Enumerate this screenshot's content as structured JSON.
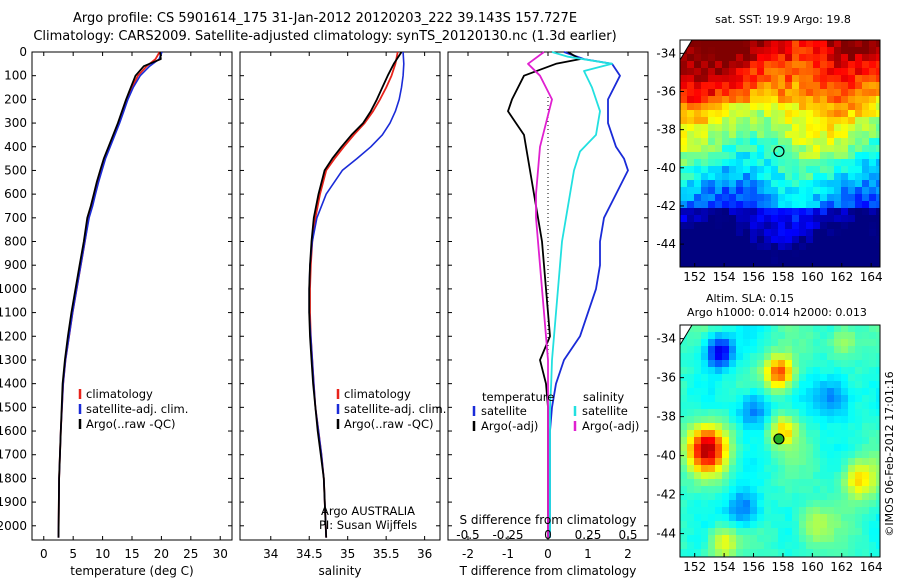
{
  "header": {
    "line1": "Argo profile: CS 5901614_175 31-Jan-2012 20120203_222 39.143S 157.727E",
    "line2": "Climatology: CARS2009. Satellite-adjusted climatology: synTS_20120130.nc (1.3d earlier)"
  },
  "chart_data": [
    {
      "type": "line",
      "xlabel": "temperature (deg C)",
      "xlim": [
        -2,
        32
      ],
      "xticks": [
        "0",
        "5",
        "10",
        "15",
        "20",
        "25",
        "30"
      ],
      "ylim": [
        0,
        2060
      ],
      "ylim_reversed": true,
      "yticks": [
        "0",
        "100",
        "200",
        "300",
        "400",
        "500",
        "600",
        "700",
        "800",
        "900",
        "1000",
        "1100",
        "1200",
        "1300",
        "1400",
        "1500",
        "1600",
        "1700",
        "1800",
        "1900",
        "2000"
      ],
      "legend": [
        "climatology",
        "satellite-adj. clim.",
        "Argo(..raw -QC)"
      ],
      "colors": [
        "#e8231b",
        "#1a2bd8",
        "#000000"
      ],
      "series": [
        {
          "name": "climatology",
          "x": [
            19.7,
            19,
            17.5,
            16,
            15,
            14.2,
            13.5,
            12.8,
            12,
            11.2,
            10.4,
            9.8,
            9.2,
            8.7,
            8.2,
            7.6,
            7,
            6.3,
            5.6,
            4.9,
            4.3,
            3.7,
            3.3,
            2.9,
            2.6,
            2.5
          ],
          "y": [
            0,
            30,
            60,
            100,
            150,
            200,
            250,
            300,
            350,
            400,
            450,
            500,
            550,
            600,
            650,
            700,
            800,
            900,
            1000,
            1100,
            1200,
            1300,
            1400,
            1600,
            1800,
            2050
          ]
        },
        {
          "name": "satellite-adj. clim.",
          "x": [
            20.1,
            19.6,
            18,
            16.4,
            15.2,
            14.3,
            13.6,
            12.9,
            12.1,
            11.3,
            10.5,
            9.9,
            9.3,
            8.8,
            8.3,
            7.7,
            7,
            6.3,
            5.6,
            4.9,
            4.3,
            3.7,
            3.3,
            2.9,
            2.6,
            2.5
          ],
          "y": [
            0,
            30,
            60,
            100,
            150,
            200,
            250,
            300,
            350,
            400,
            450,
            500,
            550,
            600,
            650,
            700,
            800,
            900,
            1000,
            1100,
            1200,
            1300,
            1400,
            1600,
            1800,
            2050
          ]
        },
        {
          "name": "Argo(..raw -QC)",
          "x": [
            19.8,
            19.9,
            17,
            15.6,
            14.8,
            14,
            13.3,
            12.6,
            11.8,
            11,
            10.2,
            9.6,
            9,
            8.5,
            8,
            7.4,
            6.8,
            6.1,
            5.4,
            4.7,
            4.1,
            3.6,
            3.2,
            2.9,
            2.6,
            2.5
          ],
          "y": [
            0,
            30,
            60,
            100,
            150,
            200,
            250,
            300,
            350,
            400,
            450,
            500,
            550,
            600,
            650,
            700,
            800,
            900,
            1000,
            1100,
            1200,
            1300,
            1400,
            1600,
            1800,
            2050
          ]
        }
      ]
    },
    {
      "type": "line",
      "xlabel": "salinity",
      "xlim": [
        33.6,
        36.2
      ],
      "xticks": [
        "34",
        "34.5",
        "35",
        "35.5",
        "36"
      ],
      "ylim": [
        0,
        2060
      ],
      "ylim_reversed": true,
      "legend": [
        "climatology",
        "satellite-adj. clim.",
        "Argo(..raw -QC)"
      ],
      "colors": [
        "#e8231b",
        "#1a2bd8",
        "#000000"
      ],
      "annotation": [
        "Argo AUSTRALIA",
        "PI: Susan Wijffels"
      ],
      "series": [
        {
          "name": "climatology",
          "x": [
            35.65,
            35.62,
            35.57,
            35.5,
            35.42,
            35.33,
            35.22,
            35.08,
            34.95,
            34.83,
            34.72,
            34.64,
            34.58,
            34.54,
            34.52,
            34.51,
            34.51,
            34.52,
            34.54,
            34.56,
            34.58,
            34.62,
            34.66,
            34.69,
            34.72
          ],
          "y": [
            0,
            50,
            100,
            150,
            200,
            250,
            300,
            350,
            400,
            450,
            500,
            600,
            700,
            800,
            900,
            1000,
            1100,
            1200,
            1300,
            1400,
            1500,
            1600,
            1700,
            1800,
            2050
          ]
        },
        {
          "name": "satellite-adj. clim.",
          "x": [
            35.72,
            35.73,
            35.72,
            35.7,
            35.67,
            35.62,
            35.55,
            35.45,
            35.3,
            35.12,
            34.93,
            34.72,
            34.6,
            34.54,
            34.51,
            34.5,
            34.5,
            34.52,
            34.54,
            34.56,
            34.58,
            34.62,
            34.66,
            34.69,
            34.72
          ],
          "y": [
            0,
            50,
            100,
            150,
            200,
            250,
            300,
            350,
            400,
            450,
            500,
            600,
            700,
            800,
            900,
            1000,
            1100,
            1200,
            1300,
            1400,
            1500,
            1600,
            1700,
            1800,
            2050
          ]
        },
        {
          "name": "Argo(..raw -QC)",
          "x": [
            35.7,
            35.6,
            35.52,
            35.45,
            35.38,
            35.3,
            35.2,
            35.05,
            34.92,
            34.8,
            34.7,
            34.62,
            34.56,
            34.53,
            34.51,
            34.5,
            34.5,
            34.51,
            34.53,
            34.55,
            34.58,
            34.61,
            34.65,
            34.69,
            34.72
          ],
          "y": [
            0,
            50,
            100,
            150,
            200,
            250,
            300,
            350,
            400,
            450,
            500,
            600,
            700,
            800,
            900,
            1000,
            1100,
            1200,
            1300,
            1400,
            1500,
            1600,
            1700,
            1800,
            2050
          ]
        }
      ]
    },
    {
      "type": "line",
      "xlabel": "T difference from climatology",
      "xlabel_top": "S difference from climatology",
      "xlim": [
        -2.5,
        2.5
      ],
      "xticks": [
        "-2",
        "-1",
        "0",
        "1",
        "2"
      ],
      "xticks_s": [
        "-0.5",
        "-0.25",
        "0",
        "0.25",
        "0.5"
      ],
      "ylim": [
        0,
        2060
      ],
      "ylim_reversed": true,
      "legend_temperature": {
        "title": "temperature",
        "items": [
          "satellite",
          "Argo(-adj)"
        ]
      },
      "legend_salinity": {
        "title": "salinity",
        "items": [
          "satellite",
          "Argo(-adj)"
        ]
      },
      "colors": {
        "t_sat": "#1a2bd8",
        "t_argo": "#000000",
        "s_sat": "#22e0e0",
        "s_argo": "#e020d0"
      },
      "series": [
        {
          "name": "T satellite",
          "x": [
            0.4,
            0.9,
            1.6,
            1.8,
            1.5,
            1.5,
            1.6,
            1.7,
            1.9,
            2.0,
            1.7,
            1.4,
            1.3,
            1.3,
            1.2,
            1.0,
            0.8,
            0.4,
            0.2,
            0.1,
            0.05,
            0.05,
            0.05,
            0.05,
            0.05
          ],
          "y": [
            0,
            30,
            50,
            100,
            200,
            300,
            350,
            400,
            450,
            500,
            600,
            700,
            800,
            900,
            1000,
            1100,
            1200,
            1300,
            1400,
            1500,
            1600,
            1700,
            1800,
            1900,
            2050
          ]
        },
        {
          "name": "T Argo",
          "x": [
            0.5,
            0.8,
            0.2,
            -0.6,
            -0.9,
            -1.0,
            -0.8,
            -0.6,
            -0.55,
            -0.45,
            -0.35,
            -0.25,
            -0.15,
            -0.1,
            -0.05,
            0,
            0.05,
            -0.2,
            -0.05,
            0,
            0,
            0,
            0,
            0,
            0
          ],
          "y": [
            0,
            30,
            50,
            100,
            200,
            250,
            300,
            350,
            400,
            500,
            600,
            700,
            800,
            900,
            1000,
            1100,
            1200,
            1300,
            1400,
            1500,
            1600,
            1700,
            1800,
            1900,
            2050
          ]
        },
        {
          "name": "S satellite",
          "x": [
            0.1,
            0.5,
            1.6,
            0.9,
            1.1,
            1.3,
            1.2,
            0.8,
            0.65,
            0.55,
            0.45,
            0.35,
            0.3,
            0.25,
            0.2,
            0.15,
            0.1,
            0.08,
            0.05,
            0.05,
            0.05,
            0.05
          ],
          "y": [
            0,
            20,
            50,
            80,
            150,
            250,
            350,
            420,
            500,
            600,
            700,
            800,
            900,
            1000,
            1100,
            1200,
            1300,
            1400,
            1500,
            1600,
            1800,
            2050
          ]
        },
        {
          "name": "S Argo",
          "x": [
            -0.1,
            -0.5,
            -0.2,
            0.1,
            -0.05,
            -0.2,
            -0.25,
            -0.3,
            -0.3,
            -0.25,
            -0.2,
            -0.15,
            -0.1,
            -0.05,
            0,
            0,
            0,
            0,
            0,
            0,
            0
          ],
          "y": [
            0,
            50,
            100,
            200,
            300,
            400,
            500,
            600,
            700,
            800,
            900,
            1000,
            1100,
            1200,
            1300,
            1400,
            1500,
            1600,
            1700,
            1800,
            2050
          ]
        }
      ]
    },
    {
      "type": "heatmap",
      "title": "sat. SST: 19.9 Argo: 19.8",
      "xticks": [
        "152",
        "154",
        "156",
        "158",
        "160",
        "162",
        "164"
      ],
      "yticks": [
        "-34",
        "-36",
        "-38",
        "-40",
        "-42",
        "-44"
      ],
      "marker": {
        "lon": 157.727,
        "lat": -39.143
      }
    },
    {
      "type": "heatmap",
      "title": "Altim. SLA: 0.15",
      "subtitle": "Argo h1000: 0.014 h2000: 0.013",
      "xticks": [
        "152",
        "154",
        "156",
        "158",
        "160",
        "162",
        "164"
      ],
      "yticks": [
        "-34",
        "-36",
        "-38",
        "-40",
        "-42",
        "-44"
      ],
      "marker": {
        "lon": 157.727,
        "lat": -39.143
      }
    }
  ],
  "footer": {
    "credit": "©IMOS 06-Feb-2012 17:01:16"
  }
}
